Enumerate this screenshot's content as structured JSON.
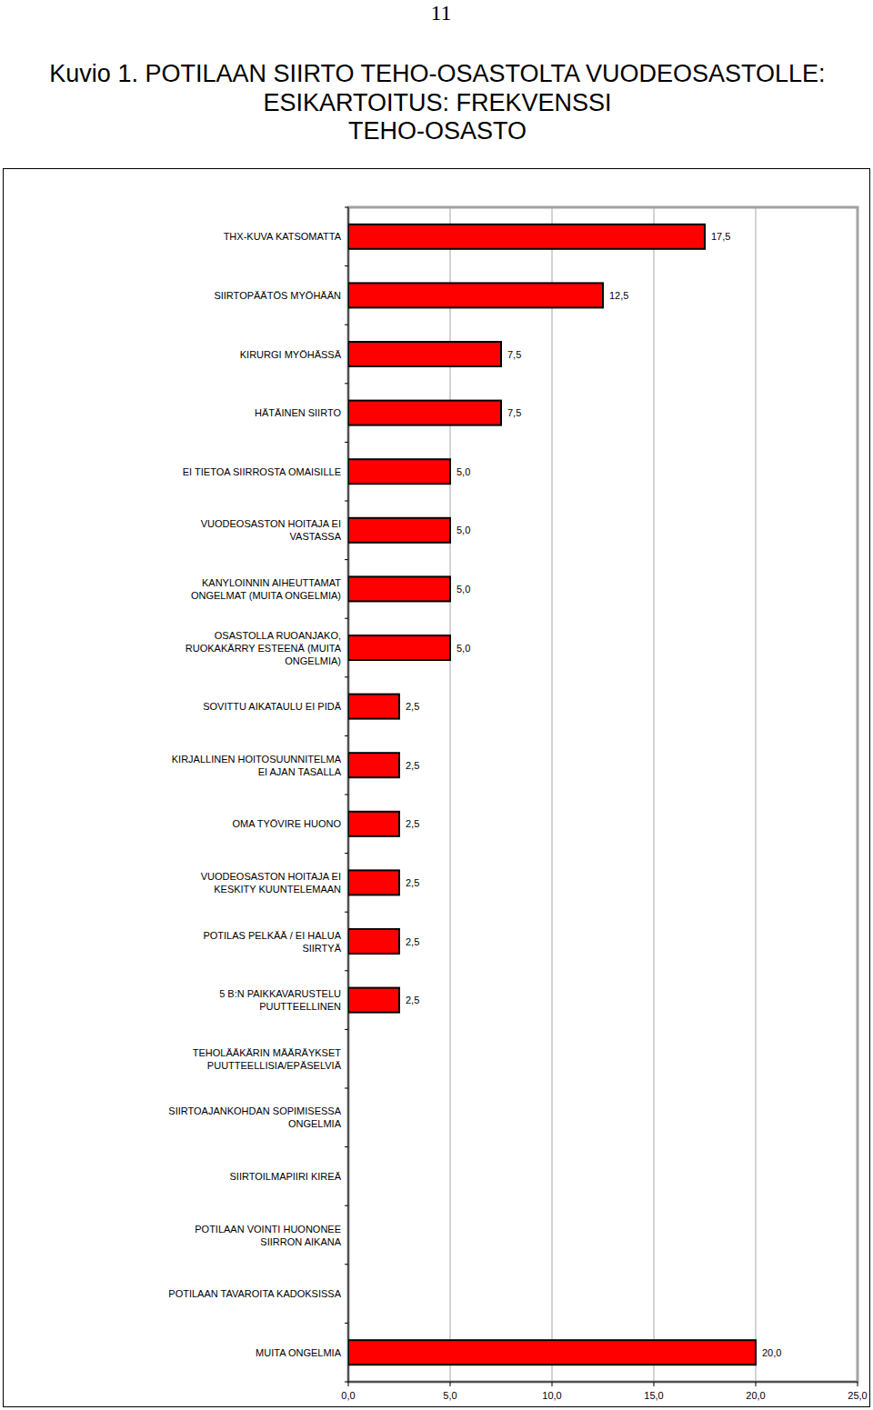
{
  "page_number": 11,
  "chart_data": {
    "type": "bar",
    "orientation": "horizontal",
    "title": "Kuvio 1. POTILAAN SIIRTO TEHO-OSASTOLTA VUODEOSASTOLLE: ESIKARTOITUS: FREKVENSSI",
    "subtitle": "TEHO-OSASTO",
    "categories": [
      "THX-KUVA KATSOMATTA",
      "SIIRTOPÄÄTÖS MYÖHÄÄN",
      "KIRURGI MYÖHÄSSÄ",
      "HÄTÄINEN SIIRTO",
      "EI TIETOA SIIRROSTA OMAISILLE",
      "VUODEOSASTON HOITAJA EI VASTASSA",
      "KANYLOINNIN AIHEUTTAMAT ONGELMAT (MUITA ONGELMIA)",
      "OSASTOLLA RUOANJAKO, RUOKAKÄRRY ESTEENÄ (MUITA ONGELMIA)",
      "SOVITTU AIKATAULU EI PIDÄ",
      "KIRJALLINEN HOITOSUUNNITELMA EI AJAN TASALLA",
      "OMA TYÖVIRE HUONO",
      "VUODEOSASTON HOITAJA EI KESKITY KUUNTELEMAAN",
      "POTILAS PELKÄÄ / EI HALUA SIIRTYÄ",
      "5 B:N PAIKKAVARUSTELU PUUTTEELLINEN",
      "TEHOLÄÄKÄRIN MÄÄRÄYKSET PUUTTEELLISIA/EPÄSELVIÄ",
      "SIIRTOAJANKOHDAN SOPIMISESSA ONGELMIA",
      "SIIRTOILMAPIIRI KIREÄ",
      "POTILAAN VOINTI HUONONEE SIIRRON AIKANA",
      "POTILAAN TAVAROITA KADOKSISSA",
      "MUITA ONGELMIA"
    ],
    "values": [
      17.5,
      12.5,
      7.5,
      7.5,
      5.0,
      5.0,
      5.0,
      5.0,
      2.5,
      2.5,
      2.5,
      2.5,
      2.5,
      2.5,
      null,
      null,
      null,
      null,
      null,
      20.0
    ],
    "value_labels": [
      "17,5",
      "12,5",
      "7,5",
      "7,5",
      "5,0",
      "5,0",
      "5,0",
      "5,0",
      "2,5",
      "2,5",
      "2,5",
      "2,5",
      "2,5",
      "2,5",
      null,
      null,
      null,
      null,
      null,
      "20,0"
    ],
    "data_labels": true,
    "color": "#ff0000",
    "xlim": [
      0,
      25
    ],
    "xticks": [
      {
        "value": 0,
        "label": "0,0"
      },
      {
        "value": 5,
        "label": "5,0"
      },
      {
        "value": 10,
        "label": "10,0"
      },
      {
        "value": 15,
        "label": "15,0"
      },
      {
        "value": 20,
        "label": "20,0"
      },
      {
        "value": 25,
        "label": "25,0"
      }
    ],
    "grid": true
  }
}
